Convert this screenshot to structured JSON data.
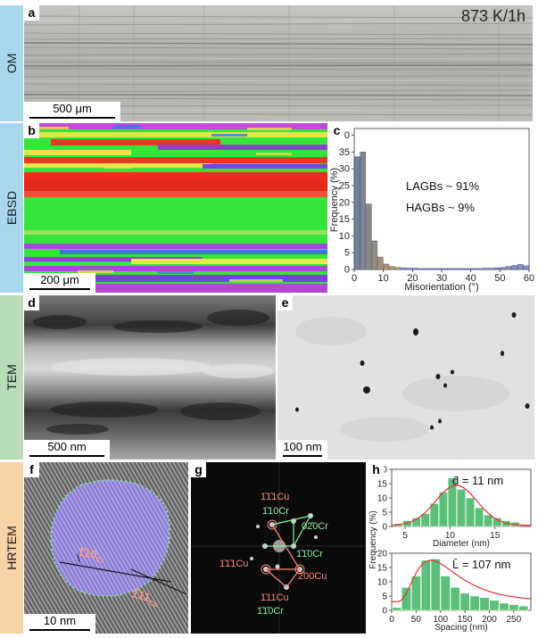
{
  "rows": {
    "om": "OM",
    "ebsd": "EBSD",
    "tem": "TEM",
    "hrtem": "HRTEM"
  },
  "panels": {
    "a": {
      "label": "a",
      "condition": "873 K/1h",
      "scale": "500 μm"
    },
    "b": {
      "label": "b",
      "scale": "200 μm"
    },
    "c": {
      "label": "c",
      "lagbs": "LAGBs ~ 91%",
      "hagbs": "HAGBs ~ 9%"
    },
    "d": {
      "label": "d",
      "scale": "500 nm"
    },
    "e": {
      "label": "e",
      "scale": "100 nm"
    },
    "f": {
      "label": "f",
      "scale": "10 nm",
      "plane1": "1̄10",
      "plane1_sub": "Cr",
      "plane2": "1̄11",
      "plane2_sub": "Cu"
    },
    "g": {
      "label": "g",
      "spots": [
        "1̄1̄1Cu",
        "1̄10Cr",
        "02̄0Cr",
        "1̄1̄0Cr",
        "1̄1̄1Cu",
        "2̄00Cu",
        "1̄11Cu",
        "1̄1̄0Cr"
      ]
    },
    "h": {
      "label": "h",
      "d_label": "d̄ = 11 nm",
      "l_label": "L̄ = 107 nm"
    }
  },
  "chart_data": [
    {
      "type": "bar",
      "panel": "c",
      "xlabel": "Misorientation (°)",
      "ylabel": "Frequency (%)",
      "xlim": [
        0,
        60
      ],
      "ylim": [
        0,
        42
      ],
      "xticks": [
        0,
        10,
        20,
        30,
        40,
        50,
        60
      ],
      "yticks": [
        0,
        5,
        10,
        15,
        20,
        25,
        30,
        35,
        40
      ],
      "bin_width": 2,
      "x": [
        1,
        3,
        5,
        7,
        9,
        11,
        13,
        15,
        17,
        19,
        21,
        23,
        25,
        27,
        29,
        31,
        33,
        35,
        37,
        39,
        41,
        43,
        45,
        47,
        49,
        51,
        53,
        55,
        57,
        59
      ],
      "values": [
        33.6,
        35.0,
        19.5,
        8.5,
        3.7,
        1.6,
        0.9,
        0.6,
        0.5,
        0.4,
        0.4,
        0.3,
        0.3,
        0.3,
        0.3,
        0.3,
        0.3,
        0.3,
        0.3,
        0.3,
        0.3,
        0.3,
        0.4,
        0.4,
        0.5,
        0.6,
        0.9,
        1.2,
        1.5,
        1.1
      ]
    },
    {
      "type": "bar",
      "panel": "h-top",
      "xlabel": "Diameter (nm)",
      "ylabel": "Frequency (%)",
      "xlim": [
        3.5,
        19
      ],
      "ylim": [
        0,
        20
      ],
      "xticks": [
        5,
        10,
        15
      ],
      "yticks": [
        0,
        5,
        10,
        15,
        20
      ],
      "x": [
        4.25,
        5.25,
        6.25,
        7.25,
        8.25,
        9.25,
        10.25,
        11.25,
        12.25,
        13.25,
        14.25,
        15.25,
        16.25,
        17.25
      ],
      "values": [
        1.0,
        2.0,
        3.0,
        4.5,
        8.0,
        12.0,
        17.0,
        13.0,
        10.0,
        6.5,
        4.0,
        3.0,
        2.0,
        1.5
      ],
      "fit": {
        "type": "gaussian",
        "mean": 10.7,
        "sigma": 2.3,
        "peak": 14.0
      }
    },
    {
      "type": "bar",
      "panel": "h-bottom",
      "xlabel": "Spacing (nm)",
      "ylabel": "Frequency (%)",
      "xlim": [
        0,
        285
      ],
      "ylim": [
        0,
        20
      ],
      "xticks": [
        0,
        50,
        100,
        150,
        200,
        250
      ],
      "yticks": [
        0,
        5,
        10,
        15,
        20
      ],
      "x": [
        10,
        30,
        50,
        70,
        90,
        110,
        130,
        150,
        170,
        190,
        210,
        230,
        250,
        270
      ],
      "values": [
        1.0,
        8.0,
        12.0,
        17.5,
        18.0,
        12.0,
        8.0,
        6.0,
        5.0,
        4.5,
        3.5,
        2.5,
        2.0,
        1.5
      ],
      "fit": {
        "type": "lognormal",
        "mode": 80,
        "peak": 17.5,
        "floor": 3.0
      }
    }
  ],
  "colors": {
    "om_strip": "#a9d6ef",
    "ebsd_strip": "#a9d6ef",
    "tem_strip": "#b7dcb5",
    "hrtem_strip": "#f7d3a7",
    "bar_c_low": "#d6a040",
    "bar_c_high": "#3f6fd0",
    "bar_h": "#5bbf7a",
    "fit_line": "#e0332f",
    "particle": "#9f8fdc",
    "cu_text": "#ff8a80",
    "cr_text": "#8df09c"
  }
}
